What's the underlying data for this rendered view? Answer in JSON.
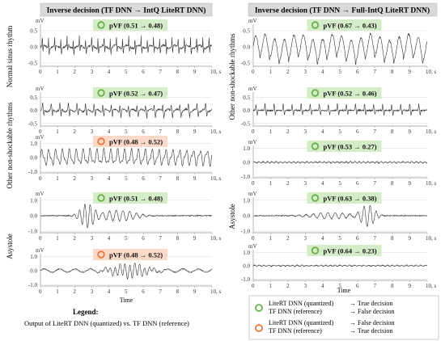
{
  "headers": {
    "left": "Inverse decision (TF DNN → IntQ LiteRT DNN)",
    "right": "Inverse decision (TF DNN → Full-IntQ LiteRT DNN)"
  },
  "row_labels": {
    "normal": "Normal sinus rhythm",
    "other_left": "Other non-shockable rhythms",
    "other_right": "Other non-shockable rhythms",
    "asys_left": "Asystole",
    "asys_right": "Asystole"
  },
  "common": {
    "unit": "mV",
    "time_label": "Time",
    "xticks": [
      "0",
      "1",
      "2",
      "3",
      "4",
      "5",
      "6",
      "7",
      "8",
      "9",
      "10, s"
    ]
  },
  "colors": {
    "green_fill": "#d5ecc9",
    "green_ring": "#6ab04c",
    "orange_fill": "#fbd9c8",
    "orange_ring": "#e8773b",
    "header_fill": "#d9d9d9",
    "trace": "#333333"
  },
  "legend": {
    "title": "Legend:",
    "description": "Output of LiteRT DNN (quantized) vs. TF DNN (reference)",
    "green_l1": "LiteRT DNN (quantized)",
    "green_r1": "→ True decision",
    "green_l2": "TF DNN (reference)",
    "green_r2": "→ False decision",
    "orange_l1": "LiteRT DNN (quantized)",
    "orange_r1": "→ False decision",
    "orange_l2": "TF DNN (reference)",
    "orange_r2": "→ True decision"
  },
  "chart_data": [
    {
      "type": "line",
      "panel": "left-normal-sinus",
      "badge": "pVF (0.51 → 0.48)",
      "badge_color": "green",
      "yticks": [
        "0.5",
        "0.0",
        "-0.5"
      ],
      "ylim": [
        -0.6,
        0.7
      ],
      "x_range": [
        0,
        10
      ]
    },
    {
      "type": "line",
      "panel": "left-other-1",
      "badge": "pVF (0.52 → 0.47)",
      "badge_color": "green",
      "yticks": [
        "0.5",
        "0.0",
        "-0.5"
      ],
      "ylim": [
        -0.6,
        0.7
      ],
      "x_range": [
        0,
        10
      ]
    },
    {
      "type": "line",
      "panel": "left-other-2",
      "badge": "pVF (0.48 → 0.52)",
      "badge_color": "orange",
      "yticks": [
        "1.0",
        "0.0",
        "-1.0"
      ],
      "ylim": [
        -1.1,
        1.2
      ],
      "x_range": [
        0,
        10
      ]
    },
    {
      "type": "line",
      "panel": "left-asystole-1",
      "badge": "pVF (0.51 → 0.48)",
      "badge_color": "green",
      "yticks": [
        "1.0",
        "0.0",
        "-1.0"
      ],
      "ylim": [
        -1.1,
        1.2
      ],
      "x_range": [
        0,
        10
      ]
    },
    {
      "type": "line",
      "panel": "left-asystole-2",
      "badge": "pVF (0.48 → 0.52)",
      "badge_color": "orange",
      "yticks": [
        "1.0",
        "0.0",
        "-1.0"
      ],
      "ylim": [
        -1.1,
        1.2
      ],
      "x_range": [
        0,
        10
      ]
    },
    {
      "type": "line",
      "panel": "right-normal-sinus",
      "badge": "pVF (0.67 → 0.43)",
      "badge_color": "green",
      "yticks": [
        "0.5",
        "0.0",
        "-0.5"
      ],
      "ylim": [
        -0.6,
        0.7
      ],
      "x_range": [
        0,
        10
      ]
    },
    {
      "type": "line",
      "panel": "right-other-1",
      "badge": "pVF (0.52 → 0.46)",
      "badge_color": "green",
      "yticks": [
        "0.5",
        "0.0",
        "-0.5"
      ],
      "ylim": [
        -0.6,
        0.7
      ],
      "x_range": [
        0,
        10
      ]
    },
    {
      "type": "line",
      "panel": "right-other-2",
      "badge": "pVF (0.53 → 0.27)",
      "badge_color": "green",
      "yticks": [
        "1.0",
        "0.0",
        "-1.0"
      ],
      "ylim": [
        -1.1,
        1.2
      ],
      "x_range": [
        0,
        10
      ]
    },
    {
      "type": "line",
      "panel": "right-asystole-1",
      "badge": "pVF (0.63 → 0.38)",
      "badge_color": "green",
      "yticks": [
        "1.0",
        "0.0",
        "-1.0"
      ],
      "ylim": [
        -1.1,
        1.2
      ],
      "x_range": [
        0,
        10
      ]
    },
    {
      "type": "line",
      "panel": "right-asystole-2",
      "badge": "pVF (0.64 → 0.23)",
      "badge_color": "green",
      "yticks": [
        "1.0",
        "0.0",
        "-1.0"
      ],
      "ylim": [
        -1.1,
        1.2
      ],
      "x_range": [
        0,
        10
      ]
    }
  ]
}
